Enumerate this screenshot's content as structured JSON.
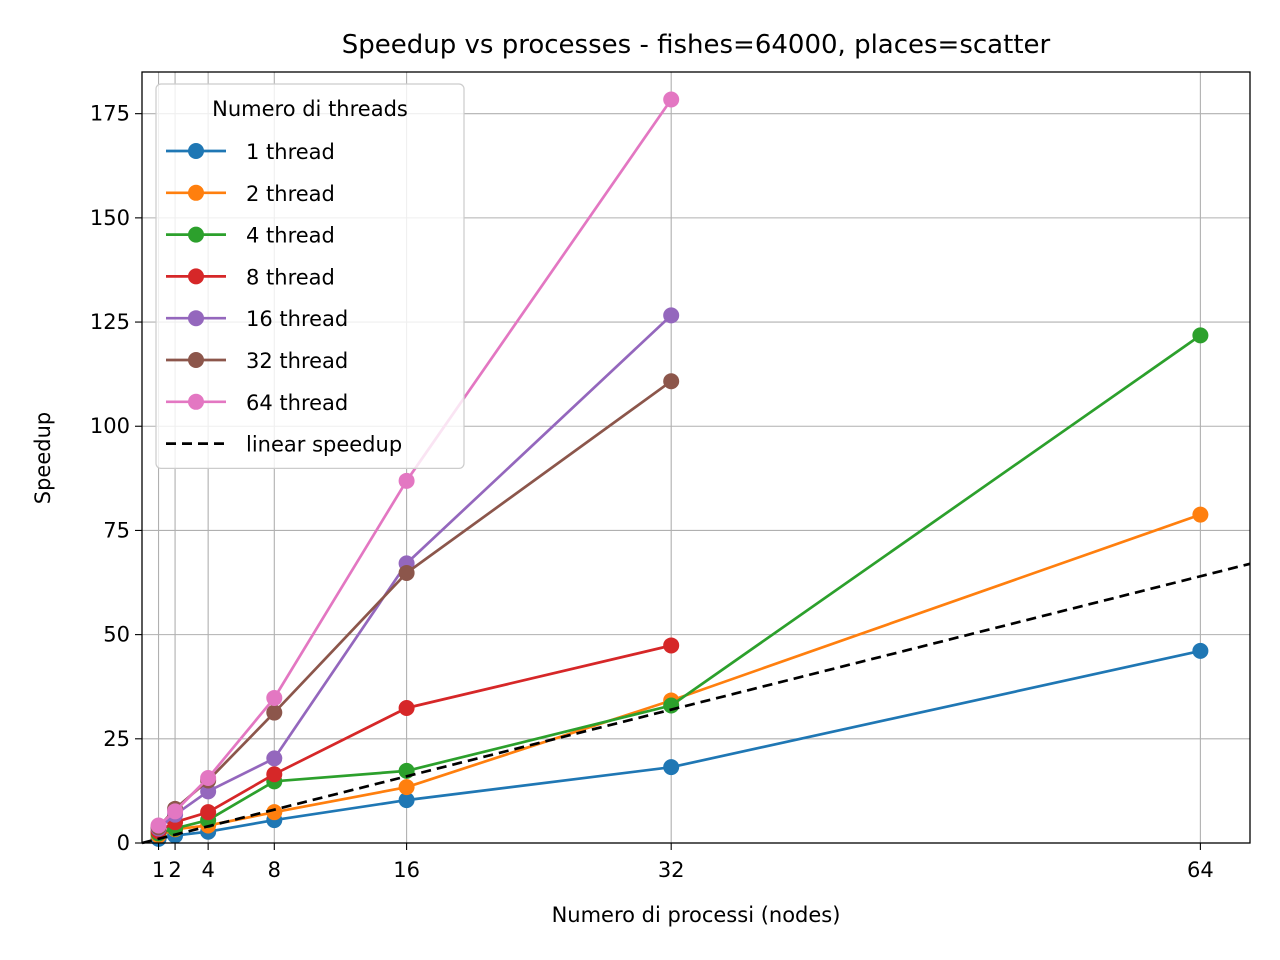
{
  "chart_data": {
    "type": "line",
    "title": "Speedup vs processes - fishes=64000, places=scatter",
    "xlabel": "Numero di processi (nodes)",
    "ylabel": "Speedup",
    "x_ticks": [
      1,
      2,
      4,
      8,
      16,
      32,
      64
    ],
    "y_ticks": [
      0,
      25,
      50,
      75,
      100,
      125,
      150,
      175
    ],
    "xlim": [
      0,
      67
    ],
    "ylim": [
      0,
      185
    ],
    "grid": true,
    "legend": {
      "title": "Numero di threads",
      "placement": "top-left"
    },
    "series": [
      {
        "name": "1 thread",
        "color": "#1f77b4",
        "x": [
          1,
          2,
          4,
          8,
          16,
          32,
          64
        ],
        "y": [
          1.0,
          1.8,
          2.7,
          5.5,
          10.3,
          18.2,
          46.1
        ]
      },
      {
        "name": "2 thread",
        "color": "#ff7f0e",
        "x": [
          1,
          2,
          4,
          8,
          16,
          32,
          64
        ],
        "y": [
          1.8,
          3.3,
          4.2,
          7.4,
          13.4,
          34.2,
          78.8
        ]
      },
      {
        "name": "4 thread",
        "color": "#2ca02c",
        "x": [
          1,
          2,
          4,
          8,
          16,
          32,
          64
        ],
        "y": [
          2.3,
          3.5,
          5.5,
          14.8,
          17.3,
          33.0,
          121.8
        ]
      },
      {
        "name": "8 thread",
        "color": "#d62728",
        "x": [
          1,
          2,
          4,
          8,
          16,
          32
        ],
        "y": [
          2.8,
          5.0,
          7.4,
          16.5,
          32.4,
          47.4
        ]
      },
      {
        "name": "16 thread",
        "color": "#9467bd",
        "x": [
          1,
          2,
          4,
          8,
          16,
          32
        ],
        "y": [
          3.5,
          6.8,
          12.4,
          20.3,
          67.1,
          126.6
        ]
      },
      {
        "name": "32 thread",
        "color": "#8c564b",
        "x": [
          1,
          2,
          4,
          8,
          16,
          32
        ],
        "y": [
          3.8,
          8.2,
          15.0,
          31.3,
          64.8,
          110.8
        ]
      },
      {
        "name": "64 thread",
        "color": "#e377c2",
        "x": [
          1,
          2,
          4,
          8,
          16,
          32
        ],
        "y": [
          4.2,
          7.6,
          15.6,
          34.8,
          86.9,
          178.4
        ]
      }
    ],
    "reference_line": {
      "name": "linear speedup",
      "color": "#000000",
      "style": "dashed",
      "x": [
        0,
        67
      ],
      "y": [
        0,
        67
      ]
    }
  }
}
